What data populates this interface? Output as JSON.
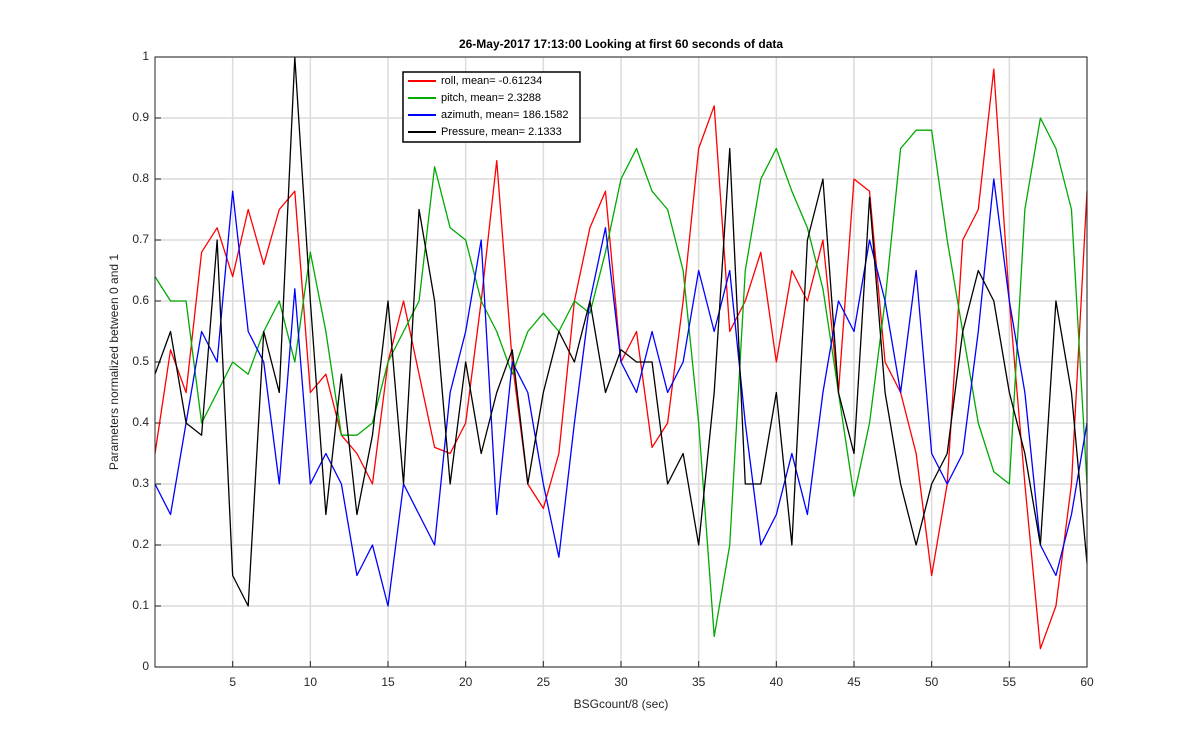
{
  "chart_data": {
    "type": "line",
    "title": "26-May-2017 17:13:00 Looking at first 60 seconds of data",
    "x_label": "BSGcount/8 (sec)",
    "y_label": "Parameters normalized between 0 and 1",
    "x": [
      0,
      1,
      2,
      3,
      4,
      5,
      6,
      7,
      8,
      9,
      10,
      11,
      12,
      13,
      14,
      15,
      16,
      17,
      18,
      19,
      20,
      21,
      22,
      23,
      24,
      25,
      26,
      27,
      28,
      29,
      30,
      31,
      32,
      33,
      34,
      35,
      36,
      37,
      38,
      39,
      40,
      41,
      42,
      43,
      44,
      45,
      46,
      47,
      48,
      49,
      50,
      51,
      52,
      53,
      54,
      55,
      56,
      57,
      58,
      59,
      60
    ],
    "series": [
      {
        "name": "roll, mean= -0.61234",
        "color": "#ff0000",
        "values": [
          0.35,
          0.52,
          0.45,
          0.68,
          0.72,
          0.64,
          0.75,
          0.66,
          0.75,
          0.78,
          0.45,
          0.48,
          0.38,
          0.35,
          0.3,
          0.5,
          0.6,
          0.48,
          0.36,
          0.35,
          0.4,
          0.6,
          0.83,
          0.5,
          0.3,
          0.26,
          0.35,
          0.6,
          0.72,
          0.78,
          0.5,
          0.55,
          0.36,
          0.4,
          0.6,
          0.85,
          0.92,
          0.55,
          0.6,
          0.68,
          0.5,
          0.65,
          0.6,
          0.7,
          0.45,
          0.8,
          0.78,
          0.5,
          0.45,
          0.35,
          0.15,
          0.3,
          0.7,
          0.75,
          0.98,
          0.6,
          0.3,
          0.03,
          0.1,
          0.3,
          0.78
        ]
      },
      {
        "name": "pitch, mean= 2.3288",
        "color": "#00aa00",
        "values": [
          0.64,
          0.6,
          0.6,
          0.4,
          0.45,
          0.5,
          0.48,
          0.55,
          0.6,
          0.5,
          0.68,
          0.55,
          0.38,
          0.38,
          0.4,
          0.5,
          0.55,
          0.6,
          0.82,
          0.72,
          0.7,
          0.6,
          0.55,
          0.48,
          0.55,
          0.58,
          0.55,
          0.6,
          0.58,
          0.68,
          0.8,
          0.85,
          0.78,
          0.75,
          0.65,
          0.4,
          0.05,
          0.2,
          0.65,
          0.8,
          0.85,
          0.78,
          0.72,
          0.62,
          0.45,
          0.28,
          0.4,
          0.6,
          0.85,
          0.88,
          0.88,
          0.7,
          0.55,
          0.4,
          0.32,
          0.3,
          0.75,
          0.9,
          0.85,
          0.75,
          0.3
        ]
      },
      {
        "name": "azimuth, mean= 186.1582",
        "color": "#0000ff",
        "values": [
          0.3,
          0.25,
          0.4,
          0.55,
          0.5,
          0.78,
          0.55,
          0.5,
          0.3,
          0.62,
          0.3,
          0.35,
          0.3,
          0.15,
          0.2,
          0.1,
          0.3,
          0.25,
          0.2,
          0.45,
          0.55,
          0.7,
          0.25,
          0.5,
          0.45,
          0.3,
          0.18,
          0.4,
          0.6,
          0.72,
          0.5,
          0.45,
          0.55,
          0.45,
          0.5,
          0.65,
          0.55,
          0.65,
          0.4,
          0.2,
          0.25,
          0.35,
          0.25,
          0.45,
          0.6,
          0.55,
          0.7,
          0.6,
          0.45,
          0.65,
          0.35,
          0.3,
          0.35,
          0.55,
          0.8,
          0.6,
          0.45,
          0.2,
          0.15,
          0.25,
          0.4
        ]
      },
      {
        "name": "Pressure, mean= 2.1333",
        "color": "#000000",
        "values": [
          0.48,
          0.55,
          0.4,
          0.38,
          0.7,
          0.15,
          0.1,
          0.55,
          0.45,
          1.0,
          0.6,
          0.25,
          0.48,
          0.25,
          0.38,
          0.6,
          0.3,
          0.75,
          0.6,
          0.3,
          0.5,
          0.35,
          0.45,
          0.52,
          0.3,
          0.45,
          0.55,
          0.5,
          0.6,
          0.45,
          0.52,
          0.5,
          0.5,
          0.3,
          0.35,
          0.2,
          0.45,
          0.85,
          0.3,
          0.3,
          0.45,
          0.2,
          0.7,
          0.8,
          0.45,
          0.35,
          0.77,
          0.45,
          0.3,
          0.2,
          0.3,
          0.35,
          0.55,
          0.65,
          0.6,
          0.45,
          0.35,
          0.2,
          0.6,
          0.45,
          0.17
        ]
      }
    ],
    "xlim": [
      0,
      60
    ],
    "xticks": [
      5,
      10,
      15,
      20,
      25,
      30,
      35,
      40,
      45,
      50,
      55,
      60
    ],
    "ylim": [
      0,
      1
    ],
    "yticks": [
      0,
      0.1,
      0.2,
      0.3,
      0.4,
      0.5,
      0.6,
      0.7,
      0.8,
      0.9,
      1
    ],
    "grid": true,
    "legend_position": "north"
  }
}
